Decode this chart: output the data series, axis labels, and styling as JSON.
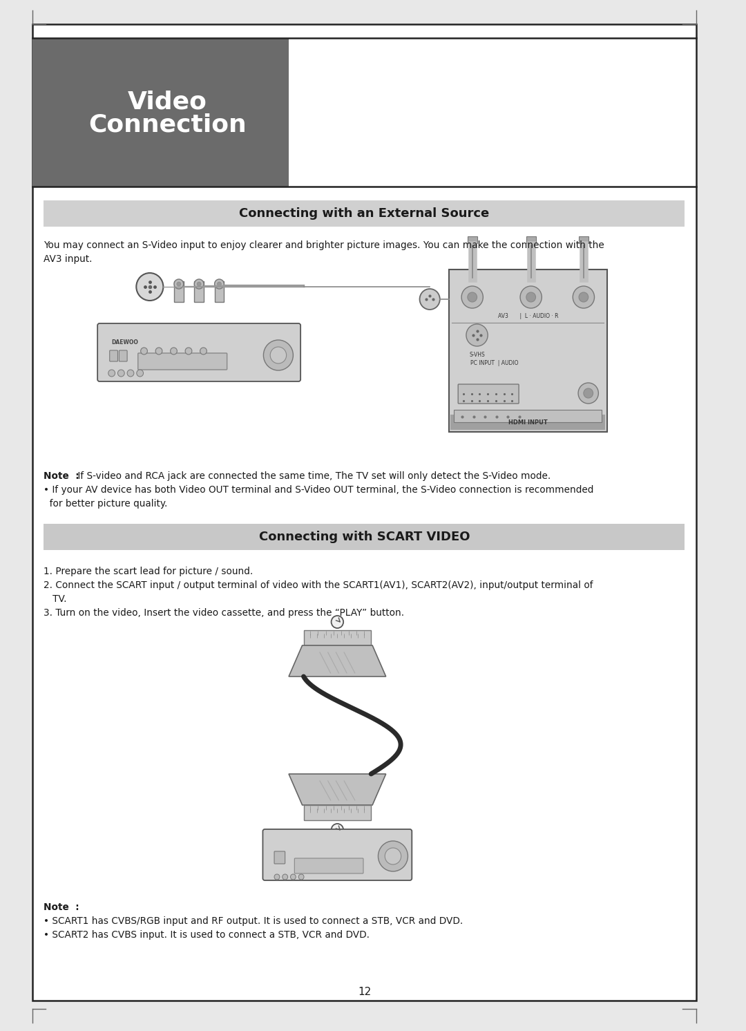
{
  "page_bg": "#e8e8e8",
  "content_bg": "#ffffff",
  "header_bg": "#6b6b6b",
  "header_text_line1": "Video",
  "header_text_line2": "Connection",
  "header_text_color": "#ffffff",
  "section1_bg": "#d0d0d0",
  "section1_title": "Connecting with an External Source",
  "section2_bg": "#c8c8c8",
  "section2_title": "Connecting with SCART VIDEO",
  "body_text_color": "#1a1a1a",
  "body_text_1a": "You may connect an S-Video input to enjoy clearer and brighter picture images. You can make the connection with the",
  "body_text_1b": "AV3 input.",
  "note_bold_1": "Note  :",
  "note_text_1a": " If S-video and RCA jack are connected the same time, The TV set will only detect the S-Video mode.",
  "note_text_1b": "• If your AV device has both Video OUT terminal and S-Video OUT terminal, the S-Video connection is recommended",
  "note_text_1c": "  for better picture quality.",
  "step1": "1. Prepare the scart lead for picture / sound.",
  "step2": "2. Connect the SCART input / output terminal of video with the SCART1(AV1), SCART2(AV2), input/output terminal of",
  "step2b": "   TV.",
  "step3": "3. Turn on the video, Insert the video cassette, and press the “PLAY” button.",
  "note_bold_2": "Note  :",
  "note2_line1": "• SCART1 has CVBS/RGB input and RF output. It is used to connect a STB, VCR and DVD.",
  "note2_line2": "• SCART2 has CVBS input. It is used to connect a STB, VCR and DVD.",
  "page_number": "12",
  "border_color": "#222222",
  "tick_color": "#666666"
}
